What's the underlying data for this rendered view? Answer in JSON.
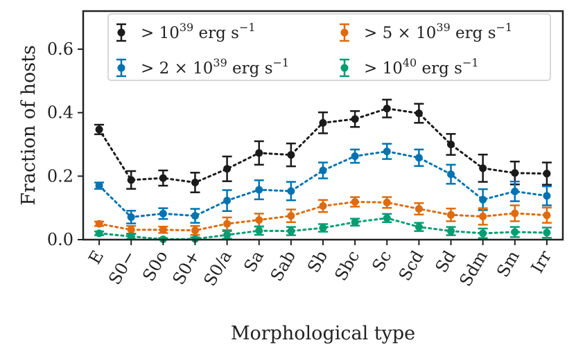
{
  "chart_data": {
    "type": "line",
    "xlabel": "Morphological type",
    "ylabel": "Fraction of hosts",
    "ylim": [
      0.0,
      0.72
    ],
    "yticks": [
      0.0,
      0.2,
      0.4,
      0.6
    ],
    "ytick_labels": [
      "0.0",
      "0.2",
      "0.4",
      "0.6"
    ],
    "categories": [
      "E",
      "S0−",
      "S0o",
      "S0+",
      "S0/a",
      "Sa",
      "Sab",
      "Sb",
      "Sbc",
      "Sc",
      "Scd",
      "Sd",
      "Sdm",
      "Sm",
      "Irr"
    ],
    "line_style": "dotted",
    "errorbars": true,
    "legend_location": "top",
    "series": [
      {
        "name": "> 10^39 erg s^-1",
        "legend": {
          "prefix": "> 10",
          "exp": "39",
          "unit": " erg s",
          "unit_exp": "−1"
        },
        "color": "#1a1a1a",
        "values": [
          0.347,
          0.188,
          0.194,
          0.18,
          0.223,
          0.273,
          0.267,
          0.368,
          0.38,
          0.413,
          0.398,
          0.3,
          0.225,
          0.21,
          0.208
        ],
        "errors": [
          0.015,
          0.028,
          0.024,
          0.031,
          0.039,
          0.037,
          0.036,
          0.033,
          0.025,
          0.028,
          0.03,
          0.033,
          0.043,
          0.036,
          0.035
        ]
      },
      {
        "name": "> 2 × 10^39 erg s^-1",
        "legend": {
          "prefix": "> 2 × 10",
          "exp": "39",
          "unit": " erg s",
          "unit_exp": "−1"
        },
        "color": "#0173b2",
        "values": [
          0.17,
          0.071,
          0.082,
          0.075,
          0.123,
          0.157,
          0.153,
          0.218,
          0.263,
          0.278,
          0.258,
          0.206,
          0.126,
          0.152,
          0.138
        ],
        "errors": [
          0.01,
          0.02,
          0.017,
          0.022,
          0.033,
          0.03,
          0.029,
          0.025,
          0.021,
          0.024,
          0.026,
          0.03,
          0.033,
          0.031,
          0.03
        ]
      },
      {
        "name": "> 5 × 10^39 erg s^-1",
        "legend": {
          "prefix": "> 5 × 10",
          "exp": "39",
          "unit": " erg s",
          "unit_exp": "−1"
        },
        "color": "#de6b0d",
        "values": [
          0.05,
          0.031,
          0.031,
          0.029,
          0.05,
          0.062,
          0.075,
          0.106,
          0.119,
          0.117,
          0.097,
          0.078,
          0.073,
          0.083,
          0.077
        ],
        "errors": [
          0.007,
          0.012,
          0.01,
          0.014,
          0.02,
          0.02,
          0.02,
          0.019,
          0.015,
          0.017,
          0.018,
          0.02,
          0.026,
          0.025,
          0.024
        ]
      },
      {
        "name": "> 10^40 erg s^-1",
        "legend": {
          "prefix": "> 10",
          "exp": "40",
          "unit": " erg s",
          "unit_exp": "−1"
        },
        "color": "#029e73",
        "values": [
          0.02,
          0.01,
          0.001,
          0.002,
          0.015,
          0.028,
          0.027,
          0.037,
          0.055,
          0.068,
          0.04,
          0.027,
          0.02,
          0.024,
          0.022
        ],
        "errors": [
          0.006,
          0.008,
          0.004,
          0.005,
          0.012,
          0.013,
          0.013,
          0.012,
          0.011,
          0.013,
          0.013,
          0.013,
          0.015,
          0.016,
          0.016
        ]
      }
    ]
  }
}
